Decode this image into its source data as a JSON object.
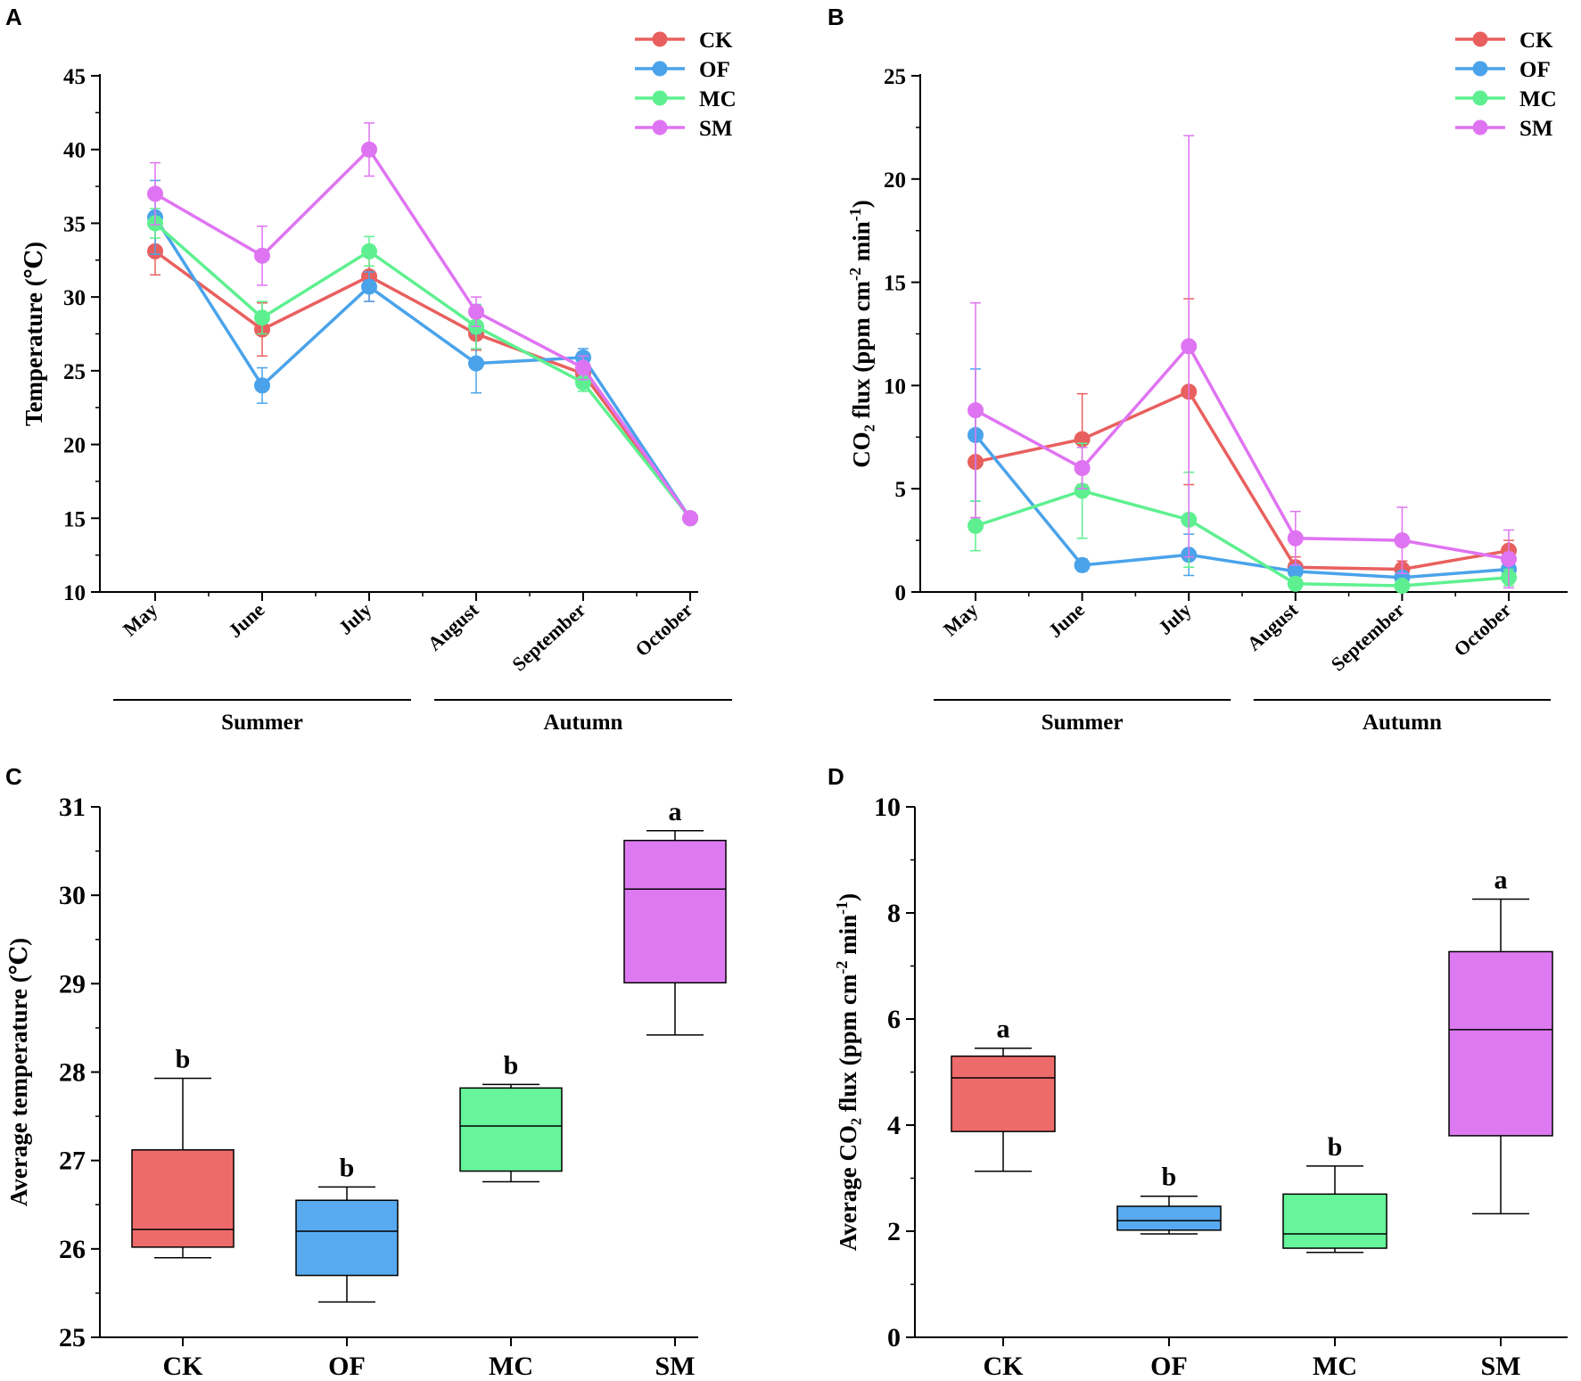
{
  "colors": {
    "CK": "#e8605e",
    "OF": "#4aa3ea",
    "MC": "#5ef090",
    "SM": "#df74f2",
    "CK_fill": "#ee6b6b",
    "OF_fill": "#58aaf0",
    "MC_fill": "#66f59a",
    "SM_fill": "#dd7af2"
  },
  "chart_data": [
    {
      "panel": "A",
      "type": "line",
      "categories": [
        "May",
        "June",
        "July",
        "August",
        "September",
        "October"
      ],
      "seasons": [
        {
          "label": "Summer",
          "months": [
            "May",
            "June",
            "July"
          ]
        },
        {
          "label": "Autumn",
          "months": [
            "August",
            "September",
            "October"
          ]
        }
      ],
      "ylabel": "Temperature (℃)",
      "ylim": [
        10,
        45
      ],
      "yticks": [
        10,
        15,
        20,
        25,
        30,
        35,
        40,
        45
      ],
      "legend_position": "top-right",
      "series": [
        {
          "name": "CK",
          "values": [
            33.1,
            27.8,
            31.4,
            27.5,
            24.8,
            15.0
          ],
          "errors": [
            1.6,
            1.8,
            1.7,
            1.1,
            0.7,
            0.3
          ]
        },
        {
          "name": "OF",
          "values": [
            35.4,
            24.0,
            30.7,
            25.5,
            25.9,
            15.0
          ],
          "errors": [
            2.5,
            1.2,
            1.0,
            2.0,
            0.6,
            0.3
          ]
        },
        {
          "name": "MC",
          "values": [
            35.0,
            28.6,
            33.1,
            28.0,
            24.2,
            15.0
          ],
          "errors": [
            1.0,
            1.1,
            1.0,
            1.5,
            0.6,
            0.3
          ]
        },
        {
          "name": "SM",
          "values": [
            37.0,
            32.8,
            40.0,
            29.0,
            25.2,
            15.0
          ],
          "errors": [
            2.1,
            2.0,
            1.8,
            1.0,
            0.8,
            0.3
          ]
        }
      ]
    },
    {
      "panel": "B",
      "type": "line",
      "categories": [
        "May",
        "June",
        "July",
        "August",
        "September",
        "October"
      ],
      "seasons": [
        {
          "label": "Summer",
          "months": [
            "May",
            "June",
            "July"
          ]
        },
        {
          "label": "Autumn",
          "months": [
            "August",
            "September",
            "October"
          ]
        }
      ],
      "ylabel": "CO₂ flux (ppm cm-2 min-1)",
      "ylabel_parts": {
        "pre": "CO₂ flux (ppm cm",
        "sup1": "-2",
        "mid": " min",
        "sup2": "-1",
        "post": ")"
      },
      "ylim": [
        0,
        25
      ],
      "yticks": [
        0,
        5,
        10,
        15,
        20,
        25
      ],
      "legend_position": "top-right",
      "series": [
        {
          "name": "CK",
          "values": [
            6.3,
            7.4,
            9.7,
            1.2,
            1.1,
            2.0
          ],
          "errors": [
            2.7,
            2.2,
            4.5,
            0.5,
            0.4,
            0.5
          ]
        },
        {
          "name": "OF",
          "values": [
            7.6,
            1.3,
            1.8,
            1.0,
            0.7,
            1.1
          ],
          "errors": [
            3.2,
            0.3,
            1.0,
            0.3,
            0.3,
            0.4
          ]
        },
        {
          "name": "MC",
          "values": [
            3.2,
            4.9,
            3.5,
            0.4,
            0.3,
            0.7
          ],
          "errors": [
            1.2,
            2.3,
            2.3,
            0.3,
            0.2,
            0.4
          ]
        },
        {
          "name": "SM",
          "values": [
            8.8,
            6.0,
            11.9,
            2.6,
            2.5,
            1.6
          ],
          "errors": [
            5.2,
            1.0,
            10.2,
            1.3,
            1.6,
            1.4
          ]
        }
      ]
    },
    {
      "panel": "C",
      "type": "box",
      "ylabel": "Average temperature (℃)",
      "ylim": [
        25,
        31
      ],
      "yticks": [
        25,
        26,
        27,
        28,
        29,
        30,
        31
      ],
      "boxes": [
        {
          "name": "CK",
          "min": 25.9,
          "q1": 26.02,
          "median": 26.22,
          "q3": 27.12,
          "max": 27.93,
          "letter": "b"
        },
        {
          "name": "OF",
          "min": 25.4,
          "q1": 25.7,
          "median": 26.2,
          "q3": 26.55,
          "max": 26.7,
          "letter": "b"
        },
        {
          "name": "MC",
          "min": 26.76,
          "q1": 26.88,
          "median": 27.39,
          "q3": 27.82,
          "max": 27.86,
          "letter": "b"
        },
        {
          "name": "SM",
          "min": 28.42,
          "q1": 29.01,
          "median": 30.07,
          "q3": 30.62,
          "max": 30.73,
          "letter": "a"
        }
      ]
    },
    {
      "panel": "D",
      "type": "box",
      "ylabel": "Average CO₂ flux (ppm cm-2 min-1)",
      "ylabel_parts": {
        "pre": "Average CO₂ flux (ppm cm",
        "sup1": "-2",
        "mid": " min",
        "sup2": "-1",
        "post": ")"
      },
      "ylim": [
        0,
        10
      ],
      "yticks": [
        0,
        2,
        4,
        6,
        8,
        10
      ],
      "boxes": [
        {
          "name": "CK",
          "min": 3.13,
          "q1": 3.88,
          "median": 4.89,
          "q3": 5.3,
          "max": 5.45,
          "letter": "a"
        },
        {
          "name": "OF",
          "min": 1.95,
          "q1": 2.02,
          "median": 2.2,
          "q3": 2.47,
          "max": 2.66,
          "letter": "b"
        },
        {
          "name": "MC",
          "min": 1.6,
          "q1": 1.68,
          "median": 1.95,
          "q3": 2.7,
          "max": 3.23,
          "letter": "b"
        },
        {
          "name": "SM",
          "min": 2.33,
          "q1": 3.8,
          "median": 5.8,
          "q3": 7.27,
          "max": 8.26,
          "letter": "a"
        }
      ]
    }
  ]
}
